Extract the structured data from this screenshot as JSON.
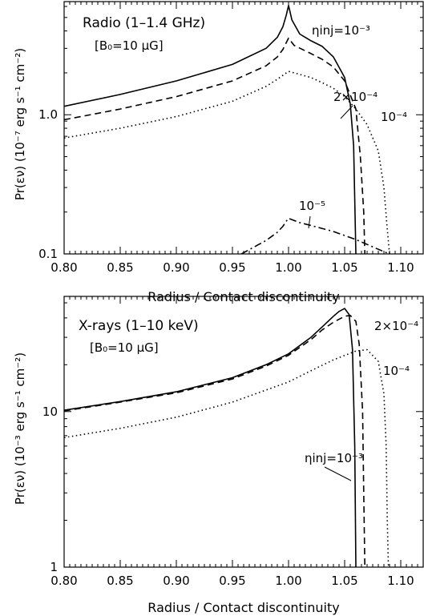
{
  "chart_data": [
    {
      "type": "line",
      "title": "Radio (1–1.4 GHz)",
      "subtitle": "[B₀=10 μG]",
      "xlabel": "Radius / Contact discontinuity",
      "ylabel": "Pr(εν) (10⁻⁷ erg s⁻¹ cm⁻²)",
      "xlim": [
        0.8,
        1.12
      ],
      "ylim": [
        0.1,
        6.5
      ],
      "yscale": "log",
      "xticks": [
        "0.80",
        "0.85",
        "0.90",
        "0.95",
        "1.00",
        "1.05",
        "1.10"
      ],
      "yticks": [
        {
          "value": 0.1,
          "label": "0.1"
        },
        {
          "value": 1.0,
          "label": "1.0"
        }
      ],
      "series": [
        {
          "name": "ηinj=10⁻³",
          "style": "solid",
          "x": [
            0.8,
            0.85,
            0.9,
            0.95,
            0.98,
            0.99,
            0.995,
            0.998,
            1.0,
            1.003,
            1.01,
            1.02,
            1.03,
            1.04,
            1.05,
            1.055,
            1.058,
            1.06
          ],
          "y": [
            1.15,
            1.4,
            1.75,
            2.3,
            3.0,
            3.6,
            4.3,
            5.2,
            6.1,
            4.8,
            3.8,
            3.4,
            3.1,
            2.6,
            1.85,
            1.2,
            0.6,
            0.1
          ]
        },
        {
          "name": "2×10⁻⁴",
          "style": "dashed",
          "x": [
            0.8,
            0.85,
            0.9,
            0.95,
            0.98,
            0.99,
            0.995,
            1.0,
            1.005,
            1.02,
            1.03,
            1.04,
            1.05,
            1.06,
            1.064,
            1.067,
            1.068
          ],
          "y": [
            0.92,
            1.1,
            1.35,
            1.75,
            2.25,
            2.6,
            2.95,
            3.55,
            3.15,
            2.75,
            2.5,
            2.2,
            1.75,
            1.1,
            0.5,
            0.2,
            0.1
          ]
        },
        {
          "name": "10⁻⁴",
          "style": "dotted",
          "x": [
            0.8,
            0.85,
            0.9,
            0.95,
            0.98,
            0.99,
            1.0,
            1.01,
            1.02,
            1.03,
            1.04,
            1.05,
            1.06,
            1.07,
            1.08,
            1.085,
            1.088,
            1.09
          ],
          "y": [
            0.68,
            0.8,
            0.97,
            1.25,
            1.6,
            1.8,
            2.05,
            1.95,
            1.85,
            1.7,
            1.55,
            1.35,
            1.1,
            0.85,
            0.55,
            0.3,
            0.15,
            0.1
          ]
        },
        {
          "name": "10⁻⁵",
          "style": "dashdot",
          "x": [
            0.958,
            0.97,
            0.98,
            0.99,
            0.995,
            0.998,
            1.0,
            1.01,
            1.02,
            1.04,
            1.06,
            1.08,
            1.09
          ],
          "y": [
            0.1,
            0.113,
            0.125,
            0.143,
            0.158,
            0.172,
            0.18,
            0.168,
            0.16,
            0.145,
            0.127,
            0.108,
            0.1
          ]
        }
      ],
      "annotations": [
        {
          "text": "ηinj=10⁻³"
        },
        {
          "text": "2×10⁻⁴"
        },
        {
          "text": "10⁻⁴"
        },
        {
          "text": "10⁻⁵"
        }
      ]
    },
    {
      "type": "line",
      "title": "X-rays (1–10 keV)",
      "subtitle": "[B₀=10 μG]",
      "xlabel": "Radius / Contact discontinuity",
      "ylabel": "Pr(εν) (10⁻³ erg s⁻¹ cm⁻²)",
      "xlim": [
        0.8,
        1.12
      ],
      "ylim": [
        1,
        55
      ],
      "yscale": "log",
      "xticks": [
        "0.80",
        "0.85",
        "0.90",
        "0.95",
        "1.00",
        "1.05",
        "1.10"
      ],
      "yticks": [
        {
          "value": 1,
          "label": "1"
        },
        {
          "value": 10,
          "label": "10"
        }
      ],
      "series": [
        {
          "name": "ηinj=10⁻³",
          "style": "solid",
          "x": [
            0.8,
            0.85,
            0.9,
            0.95,
            0.98,
            1.0,
            1.02,
            1.03,
            1.04,
            1.045,
            1.05,
            1.054,
            1.057,
            1.059,
            1.06
          ],
          "y": [
            10.2,
            11.6,
            13.4,
            16.5,
            20.0,
            23.5,
            30.0,
            35.0,
            41.0,
            44.0,
            46.0,
            42.0,
            25.0,
            6.0,
            1.0
          ]
        },
        {
          "name": "2×10⁻⁴",
          "style": "dashed",
          "x": [
            0.8,
            0.85,
            0.9,
            0.95,
            0.98,
            1.0,
            1.02,
            1.03,
            1.04,
            1.05,
            1.055,
            1.06,
            1.063,
            1.066,
            1.067,
            1.068
          ],
          "y": [
            10.1,
            11.5,
            13.2,
            16.2,
            19.6,
            23.0,
            29.0,
            33.5,
            37.5,
            41.0,
            41.5,
            38.0,
            27.0,
            10.0,
            3.0,
            1.0
          ]
        },
        {
          "name": "10⁻⁴",
          "style": "dotted",
          "x": [
            0.8,
            0.85,
            0.9,
            0.95,
            1.0,
            1.02,
            1.04,
            1.06,
            1.07,
            1.08,
            1.085,
            1.087,
            1.088,
            1.089
          ],
          "y": [
            6.8,
            7.8,
            9.2,
            11.5,
            15.5,
            18.3,
            21.5,
            24.5,
            25.0,
            21.0,
            13.0,
            6.0,
            2.0,
            1.0
          ]
        }
      ],
      "annotations": [
        {
          "text": "2×10⁻⁴"
        },
        {
          "text": "10⁻⁴"
        },
        {
          "text": "ηinj=10⁻³"
        }
      ]
    }
  ]
}
